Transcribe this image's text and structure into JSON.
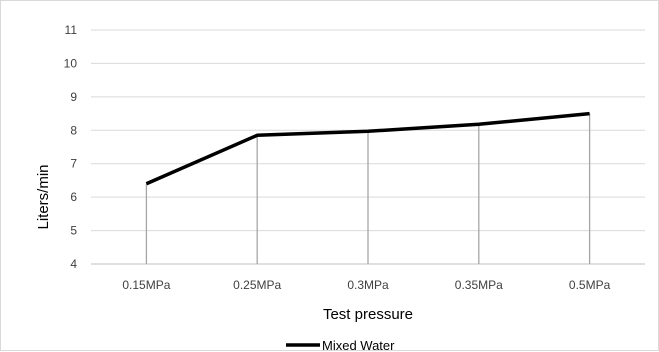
{
  "chart_data": {
    "type": "line",
    "categories": [
      "0.15MPa",
      "0.25MPa",
      "0.3MPa",
      "0.35MPa",
      "0.5MPa"
    ],
    "series": [
      {
        "name": "Mixed Water",
        "values": [
          6.4,
          7.85,
          7.97,
          8.18,
          8.5
        ]
      }
    ],
    "xlabel": "Test pressure",
    "ylabel": "Liters/min",
    "ylim": [
      4,
      11
    ],
    "yticks": [
      4,
      5,
      6,
      7,
      8,
      9,
      10,
      11
    ],
    "grid": true,
    "drop_lines": true,
    "legend_position": "bottom",
    "colors": {
      "series": "#000000",
      "gridline": "#d9d9d9",
      "drop_line": "#a6a6a6",
      "tick_text": "#404040"
    }
  }
}
